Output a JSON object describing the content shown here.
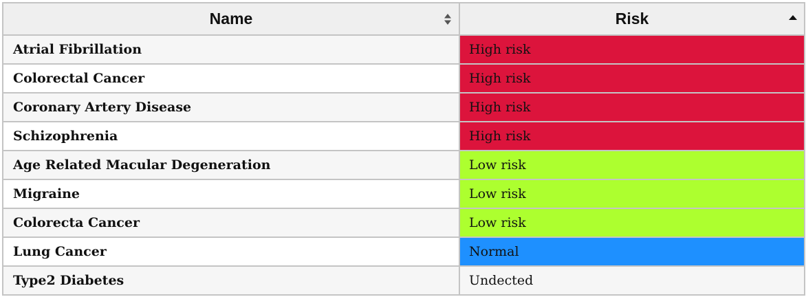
{
  "table": {
    "headers": {
      "name": "Name",
      "risk": "Risk"
    },
    "sort": {
      "name_icon": "sort-both-icon",
      "risk_icon": "sort-asc-icon"
    },
    "colors": {
      "high": "#dc143c",
      "low": "#adff2f",
      "normal": "#1e90ff",
      "none": "#f6f6f6"
    },
    "rows": [
      {
        "name": "Atrial Fibrillation",
        "risk": "High risk",
        "level": "high"
      },
      {
        "name": "Colorectal Cancer",
        "risk": "High risk",
        "level": "high"
      },
      {
        "name": "Coronary Artery Disease",
        "risk": "High risk",
        "level": "high"
      },
      {
        "name": "Schizophrenia",
        "risk": "High risk",
        "level": "high"
      },
      {
        "name": "Age Related Macular Degeneration",
        "risk": "Low risk",
        "level": "low"
      },
      {
        "name": "Migraine",
        "risk": "Low risk",
        "level": "low"
      },
      {
        "name": "Colorecta Cancer",
        "risk": "Low risk",
        "level": "low"
      },
      {
        "name": "Lung Cancer",
        "risk": "Normal",
        "level": "normal"
      },
      {
        "name": "Type2 Diabetes",
        "risk": "Undected",
        "level": "none"
      }
    ]
  }
}
